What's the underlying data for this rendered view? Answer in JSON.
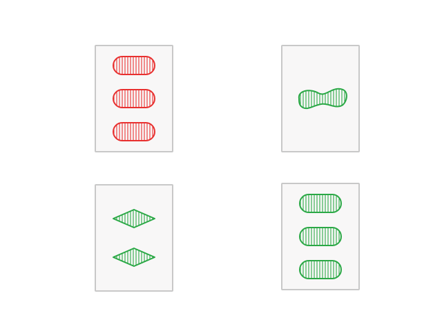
{
  "colors": {
    "red": "#e8302f",
    "green": "#2aa845",
    "card_background": "#f8f7f7",
    "card_border": "#c8c8c8"
  },
  "cards": [
    {
      "count": 3,
      "shape": "oval",
      "color": "red",
      "shading": "striped"
    },
    {
      "count": 1,
      "shape": "squiggle",
      "color": "green",
      "shading": "striped"
    },
    {
      "count": 2,
      "shape": "diamond",
      "color": "green",
      "shading": "striped"
    },
    {
      "count": 3,
      "shape": "oval",
      "color": "green",
      "shading": "striped"
    }
  ]
}
